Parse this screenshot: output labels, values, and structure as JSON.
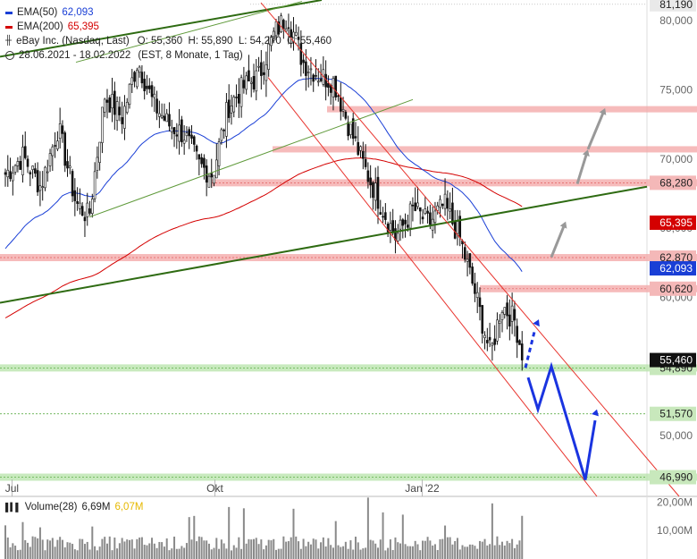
{
  "legend": {
    "ema50_label": "EMA(50)",
    "ema50_value": "62,093",
    "ema200_label": "EMA(200)",
    "ema200_value": "65,395",
    "instrument": "eBay Inc. (Nasdaq, Last)",
    "ohlc": "O: 55,360  H: 55,890  L: 54,270  C: 55,460",
    "period": "28.06.2021 - 18.02.2022",
    "period_note": "(EST, 8 Monate, 1 Tag)"
  },
  "volume_legend": {
    "label": "Volume(28)",
    "value1": "6,69M",
    "value2": "6,07M"
  },
  "colors": {
    "price": "#111111",
    "ema50": "#1a3fd6",
    "ema200": "#d40000",
    "green_line": "#2e6b12",
    "channel": "#e8342e",
    "resistance": "#f4aaaa",
    "support": "#b6e3a8",
    "blue_arrow": "#1a34e0",
    "gray_arrow": "#999999",
    "volume": "#8a8a8a",
    "volume_ma1": "#666666",
    "volume_ma2": "#e6b800"
  },
  "chart_data": {
    "type": "candlestick",
    "ylim": [
      45.6,
      81.5
    ],
    "y_ticks": [
      "80,000",
      "75,000",
      "70,000",
      "65,000",
      "60,000",
      "55,000",
      "50,000"
    ],
    "x_tick_labels": [
      "Jul",
      "Okt",
      "Jan '22"
    ],
    "levels": [
      {
        "value": 81.19,
        "label": "81,190",
        "style": "dotted"
      },
      {
        "value": 68.28,
        "label": "68,280",
        "style": "resistance"
      },
      {
        "value": 62.87,
        "label": "62,870",
        "style": "resistance"
      },
      {
        "value": 60.62,
        "label": "60,620",
        "style": "resistance"
      },
      {
        "value": 54.89,
        "label": "54,890",
        "style": "support"
      },
      {
        "value": 51.57,
        "label": "51,570",
        "style": "support-line"
      },
      {
        "value": 46.99,
        "label": "46,990",
        "style": "support"
      }
    ],
    "extra_resistance_zones": [
      73.6,
      70.7
    ],
    "last_price": {
      "value": 55.46,
      "label": "55,460"
    },
    "ema50_last": {
      "value": 62.093,
      "label": "62,093"
    },
    "ema200_last": {
      "value": 65.395,
      "label": "65,395"
    },
    "close_path": [
      [
        "2021-06-28",
        68.9
      ],
      [
        "2021-07-06",
        70.2
      ],
      [
        "2021-07-14",
        68.0
      ],
      [
        "2021-07-22",
        72.3
      ],
      [
        "2021-07-30",
        66.8
      ],
      [
        "2021-08-05",
        65.8
      ],
      [
        "2021-08-12",
        74.6
      ],
      [
        "2021-08-20",
        73.0
      ],
      [
        "2021-08-27",
        77.1
      ],
      [
        "2021-09-03",
        74.0
      ],
      [
        "2021-09-10",
        72.5
      ],
      [
        "2021-09-17",
        71.8
      ],
      [
        "2021-09-24",
        69.5
      ],
      [
        "2021-09-30",
        68.9
      ],
      [
        "2021-10-07",
        73.8
      ],
      [
        "2021-10-14",
        75.2
      ],
      [
        "2021-10-21",
        76.0
      ],
      [
        "2021-10-28",
        79.1
      ],
      [
        "2021-11-03",
        80.4
      ],
      [
        "2021-11-10",
        77.0
      ],
      [
        "2021-11-17",
        76.1
      ],
      [
        "2021-11-24",
        75.6
      ],
      [
        "2021-12-01",
        72.3
      ],
      [
        "2021-12-08",
        69.3
      ],
      [
        "2021-12-15",
        66.8
      ],
      [
        "2021-12-22",
        64.3
      ],
      [
        "2021-12-30",
        66.4
      ],
      [
        "2022-01-06",
        65.3
      ],
      [
        "2022-01-13",
        66.7
      ],
      [
        "2022-01-20",
        64.3
      ],
      [
        "2022-01-27",
        60.3
      ],
      [
        "2022-02-03",
        55.8
      ],
      [
        "2022-02-08",
        59.5
      ],
      [
        "2022-02-14",
        58.3
      ],
      [
        "2022-02-18",
        55.46
      ]
    ],
    "volume": {
      "ylim": [
        0,
        22
      ],
      "y_ticks": [
        "20,00M",
        "10,00M"
      ],
      "unit": "M"
    }
  }
}
